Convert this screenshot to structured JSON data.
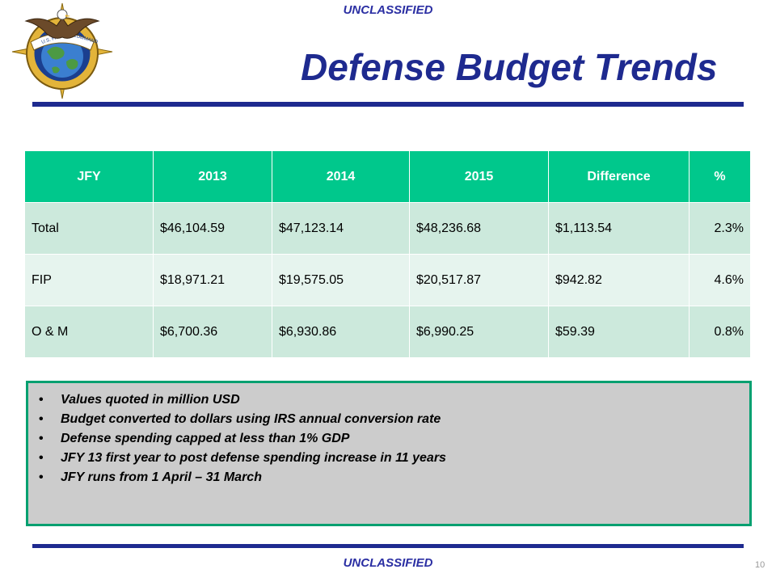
{
  "header": {
    "classification": "UNCLASSIFIED",
    "title": "Defense Budget Trends",
    "seal_text_left": "U.S. PACIFIC",
    "seal_text_right": "COMMAND"
  },
  "table": {
    "columns": [
      "JFY",
      "2013",
      "2014",
      "2015",
      "Difference",
      "%"
    ],
    "rows": [
      [
        "Total",
        "$46,104.59",
        "$47,123.14",
        "$48,236.68",
        "$1,113.54",
        "2.3%"
      ],
      [
        "FIP",
        "$18,971.21",
        "$19,575.05",
        "$20,517.87",
        "$942.82",
        "4.6%"
      ],
      [
        "O & M",
        "$6,700.36",
        "$6,930.86",
        "$6,990.25",
        "$59.39",
        "0.8%"
      ]
    ]
  },
  "notes": [
    "Values quoted in million USD",
    "Budget converted to dollars using IRS annual conversion rate",
    "Defense spending capped at less than 1% GDP",
    "JFY 13 first year to post defense spending increase in 11 years",
    "JFY runs from 1 April – 31 March"
  ],
  "footer": {
    "classification": "UNCLASSIFIED",
    "page_number": "10"
  },
  "colors": {
    "title": "#1e2a8f",
    "classification": "#2b2fa3",
    "table_header": "#00c88c",
    "row_odd": "#cce9dc",
    "row_even": "#e6f4ee",
    "notes_bg": "#cccccc",
    "notes_border": "#00a070"
  }
}
